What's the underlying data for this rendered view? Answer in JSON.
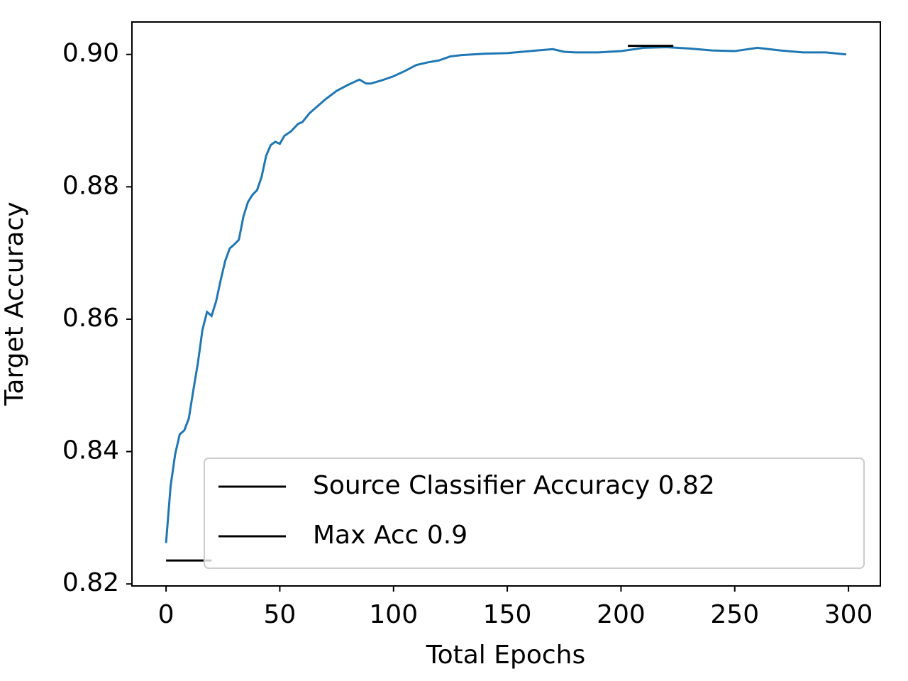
{
  "chart_data": {
    "type": "line",
    "xlabel": "Total Epochs",
    "ylabel": "Target Accuracy",
    "xlim": [
      -15,
      314
    ],
    "ylim": [
      0.8197,
      0.9049
    ],
    "xticks": [
      0,
      50,
      100,
      150,
      200,
      250,
      300
    ],
    "yticks": [
      0.82,
      0.84,
      0.86,
      0.88,
      {
        "value": 0.9,
        "label": "0.90"
      }
    ],
    "legend": "lower right",
    "series": [
      {
        "color": "#1f77b4",
        "x": [
          0,
          2,
          4,
          6,
          8,
          10,
          12,
          14,
          16,
          18,
          20,
          22,
          24,
          26,
          28,
          30,
          32,
          34,
          36,
          38,
          40,
          42,
          44,
          46,
          48,
          50,
          52,
          55,
          58,
          60,
          63,
          66,
          70,
          75,
          80,
          85,
          88,
          90,
          95,
          100,
          105,
          110,
          115,
          120,
          125,
          130,
          140,
          150,
          160,
          170,
          175,
          180,
          190,
          200,
          210,
          220,
          230,
          240,
          250,
          260,
          270,
          280,
          290,
          299
        ],
        "values": [
          0.8262,
          0.8348,
          0.8396,
          0.8426,
          0.8432,
          0.845,
          0.8493,
          0.8534,
          0.8584,
          0.8611,
          0.8605,
          0.8627,
          0.8659,
          0.8688,
          0.8707,
          0.8713,
          0.872,
          0.8755,
          0.8777,
          0.8788,
          0.8795,
          0.8815,
          0.8847,
          0.8863,
          0.8868,
          0.8865,
          0.8877,
          0.8884,
          0.8895,
          0.8898,
          0.8911,
          0.892,
          0.8932,
          0.8945,
          0.8954,
          0.8962,
          0.8956,
          0.8956,
          0.8961,
          0.8967,
          0.8975,
          0.8984,
          0.8988,
          0.8991,
          0.8997,
          0.8999,
          0.9001,
          0.9002,
          0.9005,
          0.9008,
          0.9004,
          0.9003,
          0.9003,
          0.9005,
          0.901,
          0.9011,
          0.9009,
          0.9006,
          0.9005,
          0.901,
          0.9006,
          0.9003,
          0.9003,
          0.9
        ]
      },
      {
        "name": "Source Classifier Accuracy 0.82",
        "color": "#000000",
        "x": [
          0,
          20
        ],
        "values": [
          0.82354,
          0.82354
        ]
      },
      {
        "name": "Max Acc 0.9",
        "color": "#000000",
        "x": [
          203,
          223
        ],
        "values": [
          0.9013,
          0.9013
        ]
      }
    ]
  }
}
